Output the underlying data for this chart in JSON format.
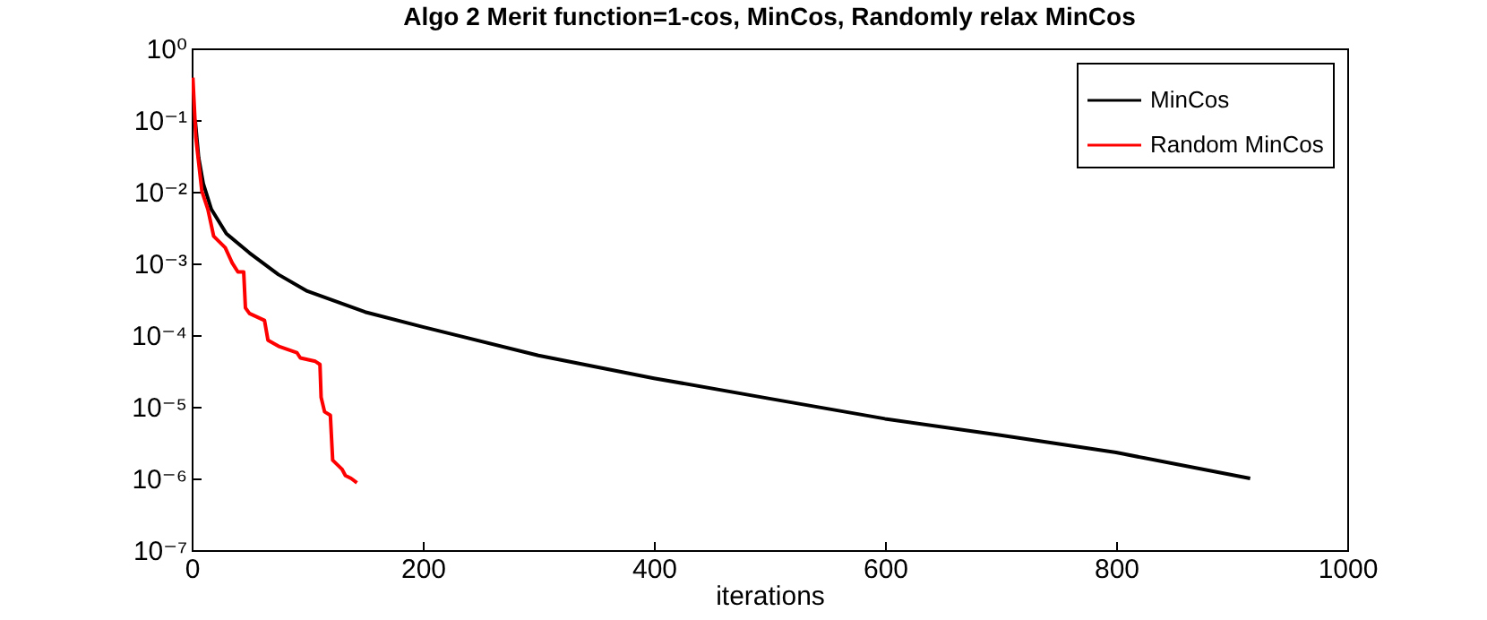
{
  "chart_data": {
    "type": "line",
    "title": "Algo 2 Merit function=1-cos, MinCos, Randomly relax MinCos",
    "xlabel": "iterations",
    "log": "y",
    "grid": false,
    "legend": "top right",
    "line_style": "solid",
    "marker": "none",
    "xlim": [
      0,
      1000
    ],
    "xticks": [
      0,
      200,
      400,
      600,
      800,
      1000
    ],
    "ylim": [
      1e-07,
      1
    ],
    "yticks": [
      {
        "value": 1e-07,
        "label": "10⁻⁷"
      },
      {
        "value": 1e-06,
        "label": "10⁻⁶"
      },
      {
        "value": 1e-05,
        "label": "10⁻⁵"
      },
      {
        "value": 0.0001,
        "label": "10⁻⁴"
      },
      {
        "value": 0.001,
        "label": "10⁻³"
      },
      {
        "value": 0.01,
        "label": "10⁻²"
      },
      {
        "value": 0.1,
        "label": "10⁻¹"
      },
      {
        "value": 1,
        "label": "10⁰"
      }
    ],
    "series": [
      {
        "name": "MinCos",
        "color": "#000000",
        "x": [
          3,
          6,
          10,
          17,
          30,
          50,
          75,
          100,
          150,
          200,
          300,
          400,
          500,
          600,
          700,
          800,
          916
        ],
        "values": [
          0.1,
          0.03,
          0.013,
          0.0057,
          0.0026,
          0.0014,
          0.0007,
          0.00041,
          0.00021,
          0.00013,
          5.2e-05,
          2.5e-05,
          1.3e-05,
          6.8e-06,
          4e-06,
          2.3e-06,
          1e-06
        ]
      },
      {
        "name": "Random MinCos",
        "color": "#ff0000",
        "x": [
          1,
          3.6,
          8.8,
          14,
          19,
          29,
          35,
          40,
          45,
          46.5,
          50,
          63,
          66,
          76,
          91,
          94,
          107,
          111,
          112,
          115,
          120,
          122,
          130,
          133,
          138,
          143
        ],
        "values": [
          0.39,
          0.057,
          0.0102,
          0.0057,
          0.0024,
          0.00166,
          0.00102,
          0.00076,
          0.00076,
          0.00024,
          0.0002,
          0.00016,
          8.5e-05,
          6.9e-05,
          5.7e-05,
          4.8e-05,
          4.3e-05,
          3.9e-05,
          1.35e-05,
          8.5e-06,
          7.6e-06,
          1.8e-06,
          1.35e-06,
          1.1e-06,
          1e-06,
          8.7e-07
        ]
      }
    ]
  }
}
